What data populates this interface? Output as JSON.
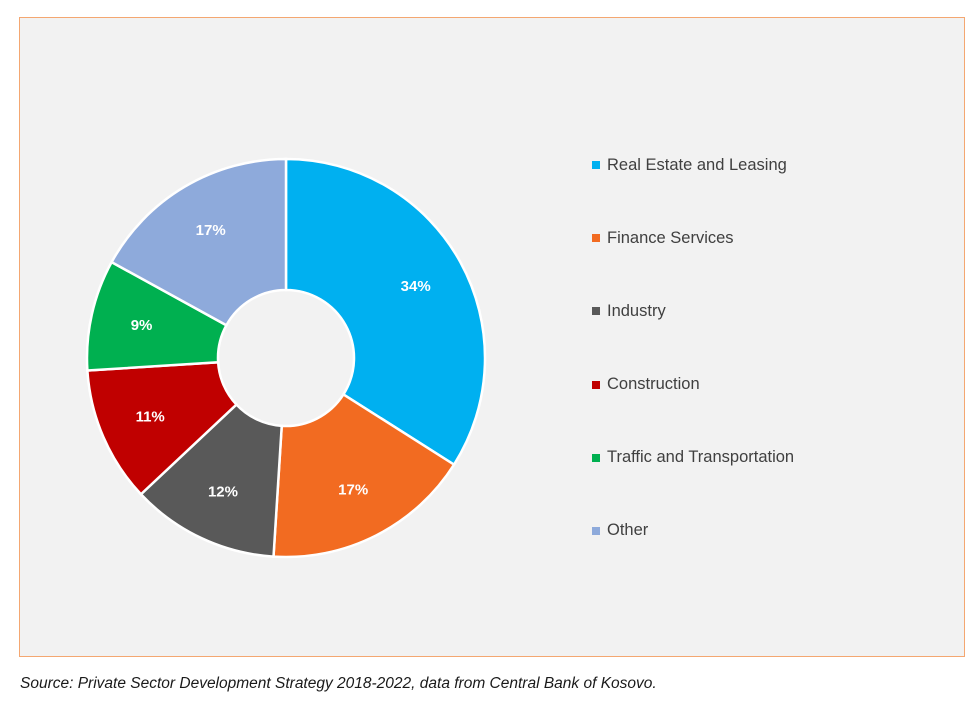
{
  "chart_data": {
    "type": "pie",
    "variant": "donut",
    "categories": [
      "Real Estate and Leasing",
      "Finance Services",
      "Industry",
      "Construction",
      "Traffic and Transportation",
      "Other"
    ],
    "values": [
      34,
      17,
      12,
      11,
      9,
      17
    ],
    "data_labels": [
      "34%",
      "17%",
      "12%",
      "11%",
      "9%",
      "17%"
    ],
    "colors": [
      "#00b0f0",
      "#f26b21",
      "#595959",
      "#c00000",
      "#00b050",
      "#8eaadb"
    ],
    "label_color": "#ffffff",
    "legend_position": "right",
    "title": ""
  },
  "source_note": "Source: Private Sector Development Strategy 2018-2022, data from Central Bank of Kosovo."
}
